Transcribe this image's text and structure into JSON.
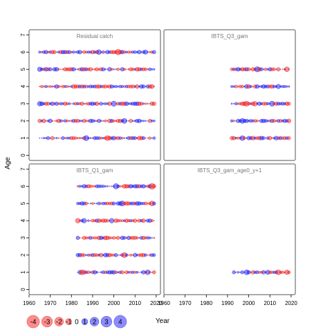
{
  "chart_data": {
    "type": "scatter",
    "subtype": "bubble",
    "xlabel": "Year",
    "ylabel": "Age",
    "xlim": [
      1960,
      2022
    ],
    "ylim": [
      -0.3,
      7.3
    ],
    "xticks": [
      1960,
      1970,
      1980,
      1990,
      2000,
      2010,
      2020
    ],
    "yticks": [
      0,
      1,
      2,
      3,
      4,
      5,
      6,
      7
    ],
    "colors": {
      "positive": "#0000ff",
      "negative": "#ff0000"
    },
    "legend": {
      "placement": "bottom-left",
      "entries": [
        {
          "label": "-4",
          "value": -4
        },
        {
          "label": "-3",
          "value": -3
        },
        {
          "label": "-2",
          "value": -2
        },
        {
          "label": "-1",
          "value": -1
        },
        {
          "label": "0",
          "value": 0
        },
        {
          "label": "1",
          "value": 1
        },
        {
          "label": "2",
          "value": 2
        },
        {
          "label": "3",
          "value": 3
        },
        {
          "label": "4",
          "value": 4
        }
      ]
    },
    "panels": [
      {
        "title": "Residual catch",
        "year_range": [
          1965,
          2019
        ],
        "ages": [
          1,
          2,
          3,
          4,
          5,
          6
        ],
        "seed": 11,
        "highlights": [
          {
            "year": 2002,
            "age": 6,
            "value": -2.8
          },
          {
            "year": 2000,
            "age": 3,
            "value": 2.6
          },
          {
            "year": 2005,
            "age": 2,
            "value": 2.4
          },
          {
            "year": 1987,
            "age": 1,
            "value": 2.5
          },
          {
            "year": 1993,
            "age": 6,
            "value": 2.2
          },
          {
            "year": 1965,
            "age": 5,
            "value": 1.9
          },
          {
            "year": 1965,
            "age": 3,
            "value": 2.0
          },
          {
            "year": 1997,
            "age": 1,
            "value": -2.3
          },
          {
            "year": 2018,
            "age": 4,
            "value": -1.6
          },
          {
            "year": 2015,
            "age": 6,
            "value": 1.8
          }
        ]
      },
      {
        "title": "IBTS_Q3_gam",
        "year_range": [
          1992,
          2019
        ],
        "ages": [
          1,
          2,
          3,
          4,
          5
        ],
        "seed": 23,
        "highlights": [
          {
            "year": 2004,
            "age": 5,
            "value": 2.6
          },
          {
            "year": 1999,
            "age": 3,
            "value": -2.4
          },
          {
            "year": 2011,
            "age": 3,
            "value": 2.5
          },
          {
            "year": 2018,
            "age": 5,
            "value": -2.2
          },
          {
            "year": 1997,
            "age": 2,
            "value": 2.3
          },
          {
            "year": 1997,
            "age": 1,
            "value": 2.2
          },
          {
            "year": 2003,
            "age": 3,
            "value": -2.1
          },
          {
            "year": 2014,
            "age": 4,
            "value": 1.9
          }
        ]
      },
      {
        "title": "IBTS_Q1_gam",
        "year_range": [
          1983,
          2019
        ],
        "ages": [
          1,
          2,
          3,
          4,
          5,
          6
        ],
        "seed": 37,
        "highlights": [
          {
            "year": 2018,
            "age": 6,
            "value": -3.2
          },
          {
            "year": 2001,
            "age": 6,
            "value": 2.7
          },
          {
            "year": 2005,
            "age": 2,
            "value": -2.5
          },
          {
            "year": 1985,
            "age": 1,
            "value": -2.4
          },
          {
            "year": 2004,
            "age": 5,
            "value": 2.5
          },
          {
            "year": 2018,
            "age": 5,
            "value": -2.3
          },
          {
            "year": 1983,
            "age": 4,
            "value": -2.1
          },
          {
            "year": 1986,
            "age": 4,
            "value": 2.0
          },
          {
            "year": 1999,
            "age": 4,
            "value": 2.1
          },
          {
            "year": 2016,
            "age": 1,
            "value": 2.2
          }
        ]
      },
      {
        "title": "IBTS_Q3_gam_age0_y+1",
        "year_range": [
          1993,
          2019
        ],
        "ages": [
          1
        ],
        "seed": 41,
        "highlights": [
          {
            "year": 1999,
            "age": 1,
            "value": 2.3
          },
          {
            "year": 2014,
            "age": 1,
            "value": -2.4
          },
          {
            "year": 2018,
            "age": 1,
            "value": -2.0
          },
          {
            "year": 2009,
            "age": 1,
            "value": 1.8
          }
        ]
      }
    ]
  }
}
